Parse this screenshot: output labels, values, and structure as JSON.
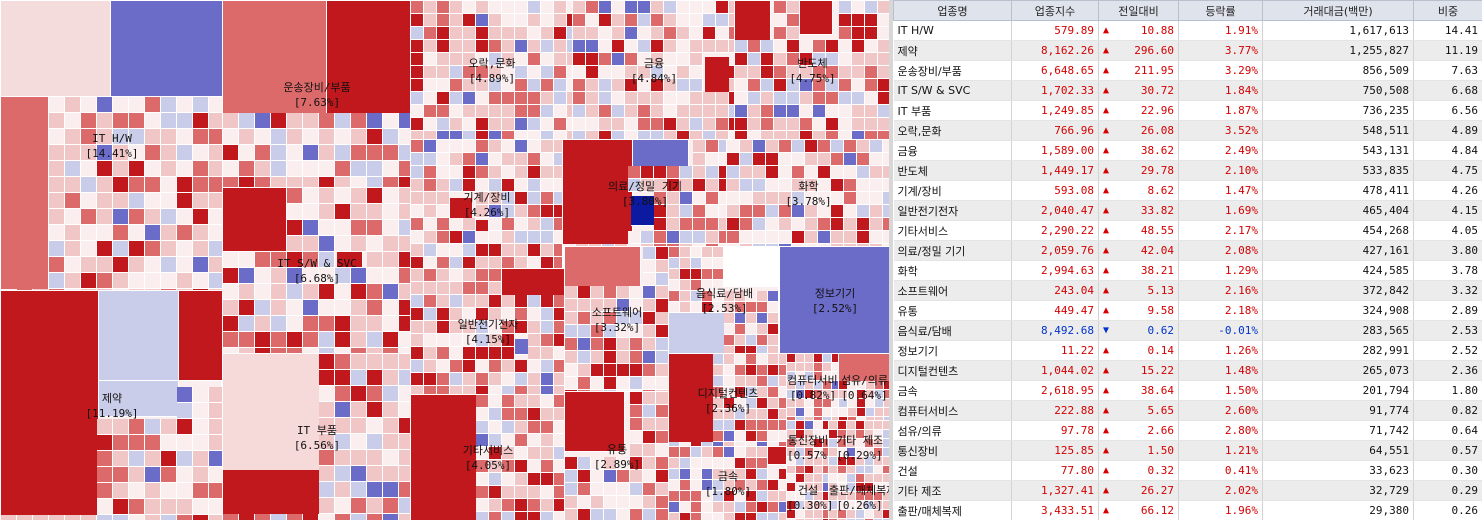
{
  "colors": {
    "up_strong": "#c0181c",
    "up_mid": "#dd6a6a",
    "up_light": "#f1c6c6",
    "flat": "#fbeeee",
    "down_light": "#c9cde9",
    "down_strong": "#6b6bc8",
    "up_text": "#d40000",
    "down_text": "#0033cc"
  },
  "treemap": {
    "sectors": [
      {
        "name": "IT H/W",
        "pct": "[14.41%]"
      },
      {
        "name": "제약",
        "pct": "[11.19%]"
      },
      {
        "name": "운송장비/부품",
        "pct": "[7.63%]"
      },
      {
        "name": "IT S/W & SVC",
        "pct": "[6.68%]"
      },
      {
        "name": "IT 부품",
        "pct": "[6.56%]"
      },
      {
        "name": "오락,문화",
        "pct": "[4.89%]"
      },
      {
        "name": "기계/장비",
        "pct": "[4.26%]"
      },
      {
        "name": "일반전기전자",
        "pct": "[4.15%]"
      },
      {
        "name": "기타서비스",
        "pct": "[4.05%]"
      },
      {
        "name": "금융",
        "pct": "[4.84%]"
      },
      {
        "name": "의료/정밀 기기",
        "pct": "[3.80%]"
      },
      {
        "name": "소프트웨어",
        "pct": "[3.32%]"
      },
      {
        "name": "유통",
        "pct": "[2.89%]"
      },
      {
        "name": "반도체",
        "pct": "[4.75%]"
      },
      {
        "name": "화학",
        "pct": "[3.78%]"
      },
      {
        "name": "음식료/담배",
        "pct": "[2.53%]"
      },
      {
        "name": "정보기기",
        "pct": "[2.52%]"
      },
      {
        "name": "디지털컨텐츠",
        "pct": "[2.36%]"
      },
      {
        "name": "금속",
        "pct": "[1.80%]"
      },
      {
        "name": "컴퓨터서비스",
        "pct": "[0.82%]"
      },
      {
        "name": "섬유/의류",
        "pct": "[0.64%]"
      },
      {
        "name": "통신장비",
        "pct": "[0.57%]"
      },
      {
        "name": "기타 제조",
        "pct": "[0.29%]"
      },
      {
        "name": "출판/매체복제",
        "pct": "[0.26%]"
      },
      {
        "name": "건설",
        "pct": "[0.30%]"
      }
    ]
  },
  "table": {
    "headers": [
      "업종명",
      "업종지수",
      "전일대비",
      "등락률",
      "거래대금(백만)",
      "비중"
    ],
    "rows": [
      {
        "name": "IT H/W",
        "index": "579.89",
        "dir": "up",
        "arrow": "▲",
        "change": "10.88",
        "rate": "1.91%",
        "volume": "1,617,613",
        "weight": "14.41"
      },
      {
        "name": "제약",
        "index": "8,162.26",
        "dir": "up",
        "arrow": "▲",
        "change": "296.60",
        "rate": "3.77%",
        "volume": "1,255,827",
        "weight": "11.19"
      },
      {
        "name": "운송장비/부품",
        "index": "6,648.65",
        "dir": "up",
        "arrow": "▲",
        "change": "211.95",
        "rate": "3.29%",
        "volume": "856,509",
        "weight": "7.63"
      },
      {
        "name": "IT S/W & SVC",
        "index": "1,702.33",
        "dir": "up",
        "arrow": "▲",
        "change": "30.72",
        "rate": "1.84%",
        "volume": "750,508",
        "weight": "6.68"
      },
      {
        "name": "IT 부품",
        "index": "1,249.85",
        "dir": "up",
        "arrow": "▲",
        "change": "22.96",
        "rate": "1.87%",
        "volume": "736,235",
        "weight": "6.56"
      },
      {
        "name": "오락,문화",
        "index": "766.96",
        "dir": "up",
        "arrow": "▲",
        "change": "26.08",
        "rate": "3.52%",
        "volume": "548,511",
        "weight": "4.89"
      },
      {
        "name": "금융",
        "index": "1,589.00",
        "dir": "up",
        "arrow": "▲",
        "change": "38.62",
        "rate": "2.49%",
        "volume": "543,131",
        "weight": "4.84"
      },
      {
        "name": "반도체",
        "index": "1,449.17",
        "dir": "up",
        "arrow": "▲",
        "change": "29.78",
        "rate": "2.10%",
        "volume": "533,835",
        "weight": "4.75"
      },
      {
        "name": "기계/장비",
        "index": "593.08",
        "dir": "up",
        "arrow": "▲",
        "change": "8.62",
        "rate": "1.47%",
        "volume": "478,411",
        "weight": "4.26"
      },
      {
        "name": "일반전기전자",
        "index": "2,040.47",
        "dir": "up",
        "arrow": "▲",
        "change": "33.82",
        "rate": "1.69%",
        "volume": "465,404",
        "weight": "4.15"
      },
      {
        "name": "기타서비스",
        "index": "2,290.22",
        "dir": "up",
        "arrow": "▲",
        "change": "48.55",
        "rate": "2.17%",
        "volume": "454,268",
        "weight": "4.05"
      },
      {
        "name": "의료/정밀 기기",
        "index": "2,059.76",
        "dir": "up",
        "arrow": "▲",
        "change": "42.04",
        "rate": "2.08%",
        "volume": "427,161",
        "weight": "3.80"
      },
      {
        "name": "화학",
        "index": "2,994.63",
        "dir": "up",
        "arrow": "▲",
        "change": "38.21",
        "rate": "1.29%",
        "volume": "424,585",
        "weight": "3.78"
      },
      {
        "name": "소프트웨어",
        "index": "243.04",
        "dir": "up",
        "arrow": "▲",
        "change": "5.13",
        "rate": "2.16%",
        "volume": "372,842",
        "weight": "3.32"
      },
      {
        "name": "유통",
        "index": "449.47",
        "dir": "up",
        "arrow": "▲",
        "change": "9.58",
        "rate": "2.18%",
        "volume": "324,908",
        "weight": "2.89"
      },
      {
        "name": "음식료/담배",
        "index": "8,492.68",
        "dir": "down",
        "arrow": "▼",
        "change": "0.62",
        "rate": "-0.01%",
        "volume": "283,565",
        "weight": "2.53"
      },
      {
        "name": "정보기기",
        "index": "11.22",
        "dir": "up",
        "arrow": "▲",
        "change": "0.14",
        "rate": "1.26%",
        "volume": "282,991",
        "weight": "2.52"
      },
      {
        "name": "디지털컨텐츠",
        "index": "1,044.02",
        "dir": "up",
        "arrow": "▲",
        "change": "15.22",
        "rate": "1.48%",
        "volume": "265,073",
        "weight": "2.36"
      },
      {
        "name": "금속",
        "index": "2,618.95",
        "dir": "up",
        "arrow": "▲",
        "change": "38.64",
        "rate": "1.50%",
        "volume": "201,794",
        "weight": "1.80"
      },
      {
        "name": "컴퓨터서비스",
        "index": "222.88",
        "dir": "up",
        "arrow": "▲",
        "change": "5.65",
        "rate": "2.60%",
        "volume": "91,774",
        "weight": "0.82"
      },
      {
        "name": "섬유/의류",
        "index": "97.78",
        "dir": "up",
        "arrow": "▲",
        "change": "2.66",
        "rate": "2.80%",
        "volume": "71,742",
        "weight": "0.64"
      },
      {
        "name": "통신장비",
        "index": "125.85",
        "dir": "up",
        "arrow": "▲",
        "change": "1.50",
        "rate": "1.21%",
        "volume": "64,551",
        "weight": "0.57"
      },
      {
        "name": "건설",
        "index": "77.80",
        "dir": "up",
        "arrow": "▲",
        "change": "0.32",
        "rate": "0.41%",
        "volume": "33,623",
        "weight": "0.30"
      },
      {
        "name": "기타 제조",
        "index": "1,327.41",
        "dir": "up",
        "arrow": "▲",
        "change": "26.27",
        "rate": "2.02%",
        "volume": "32,729",
        "weight": "0.29"
      },
      {
        "name": "출판/매체복제",
        "index": "3,433.51",
        "dir": "up",
        "arrow": "▲",
        "change": "66.12",
        "rate": "1.96%",
        "volume": "29,380",
        "weight": "0.26"
      }
    ]
  }
}
